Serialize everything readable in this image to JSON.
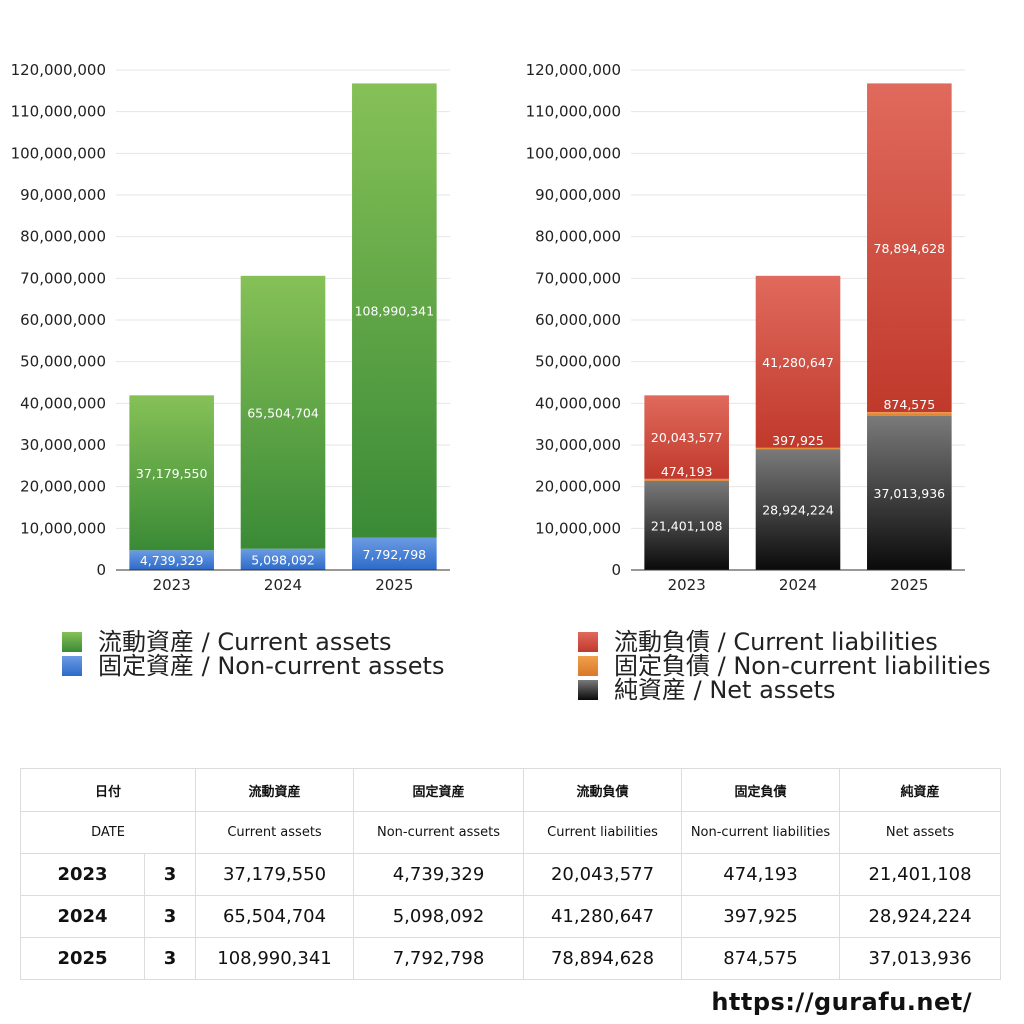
{
  "chart_data": [
    {
      "type": "bar",
      "stacked": true,
      "categories": [
        "2023",
        "2024",
        "2025"
      ],
      "ylim": [
        0,
        120000000
      ],
      "yticks": [
        "0",
        "10,000,000",
        "20,000,000",
        "30,000,000",
        "40,000,000",
        "50,000,000",
        "60,000,000",
        "70,000,000",
        "80,000,000",
        "90,000,000",
        "100,000,000",
        "110,000,000",
        "120,000,000"
      ],
      "grid": true,
      "legend_position": "bottom",
      "series": [
        {
          "name": "固定資産 / Non-current assets",
          "values": [
            4739329,
            5098092,
            7792798
          ],
          "labels": [
            "4,739,329",
            "5,098,092",
            "7,792,798"
          ],
          "color_top": "#6c9be3",
          "color_bottom": "#2c6ac9"
        },
        {
          "name": "流動資産 / Current assets",
          "values": [
            37179550,
            65504704,
            108990341
          ],
          "labels": [
            "37,179,550",
            "65,504,704",
            "108,990,341"
          ],
          "color_top": "#86c157",
          "color_bottom": "#3a8a36"
        }
      ]
    },
    {
      "type": "bar",
      "stacked": true,
      "categories": [
        "2023",
        "2024",
        "2025"
      ],
      "ylim": [
        0,
        120000000
      ],
      "yticks": [
        "0",
        "10,000,000",
        "20,000,000",
        "30,000,000",
        "40,000,000",
        "50,000,000",
        "60,000,000",
        "70,000,000",
        "80,000,000",
        "90,000,000",
        "100,000,000",
        "110,000,000",
        "120,000,000"
      ],
      "grid": true,
      "legend_position": "bottom",
      "series": [
        {
          "name": "純資産 / Net assets",
          "values": [
            21401108,
            28924224,
            37013936
          ],
          "labels": [
            "21,401,108",
            "28,924,224",
            "37,013,936"
          ],
          "color_top": "#7a7a7a",
          "color_bottom": "#0a0a0a"
        },
        {
          "name": "固定負債 / Non-current liabilities",
          "values": [
            474193,
            397925,
            874575
          ],
          "labels": [
            "474,193",
            "397,925",
            "874,575"
          ],
          "color_top": "#f0a04a",
          "color_bottom": "#d9782a"
        },
        {
          "name": "流動負債 / Current liabilities",
          "values": [
            20043577,
            41280647,
            78894628
          ],
          "labels": [
            "20,043,577",
            "41,280,647",
            "78,894,628"
          ],
          "color_top": "#e06a5d",
          "color_bottom": "#c0392b"
        }
      ]
    }
  ],
  "legend_left": [
    {
      "label": "流動資産 / Current assets",
      "color": "#4fa043"
    },
    {
      "label": "固定資産 / Non-current assets",
      "color": "#3f7fd8"
    }
  ],
  "legend_right": [
    {
      "label": "流動負債 / Current liabilities",
      "color": "#d3473a"
    },
    {
      "label": "固定負債 / Non-current liabilities",
      "color": "#e8892f"
    },
    {
      "label": "純資産 / Net assets",
      "color": "#333333"
    }
  ],
  "table": {
    "header_jp": [
      "日付",
      "流動資産",
      "固定資産",
      "流動負債",
      "固定負債",
      "純資産"
    ],
    "header_en": [
      "DATE",
      "Current assets",
      "Non-current assets",
      "Current liabilities",
      "Non-current liabilities",
      "Net assets"
    ],
    "rows": [
      {
        "year": "2023",
        "month": "3",
        "cells": [
          "37,179,550",
          "4,739,329",
          "20,043,577",
          "474,193",
          "21,401,108"
        ]
      },
      {
        "year": "2024",
        "month": "3",
        "cells": [
          "65,504,704",
          "5,098,092",
          "41,280,647",
          "397,925",
          "28,924,224"
        ]
      },
      {
        "year": "2025",
        "month": "3",
        "cells": [
          "108,990,341",
          "7,792,798",
          "78,894,628",
          "874,575",
          "37,013,936"
        ]
      }
    ]
  },
  "site_url": "https://gurafu.net/"
}
